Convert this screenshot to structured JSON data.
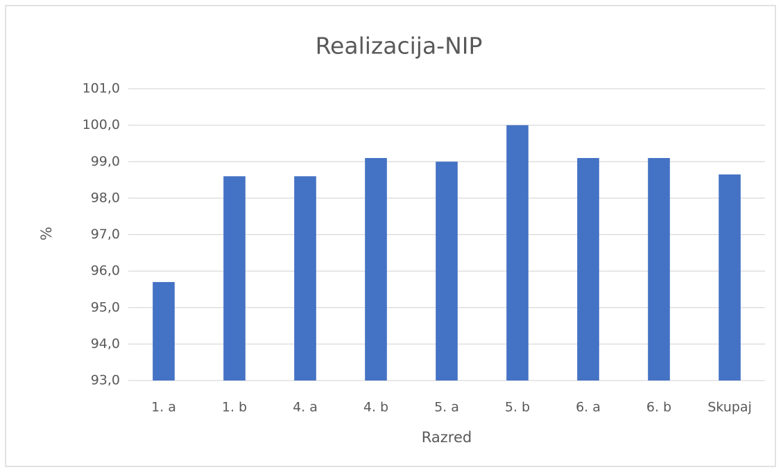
{
  "chart_data": {
    "type": "bar",
    "title": "Realizacija-NIP",
    "x_label": "Razred",
    "y_label": "%",
    "categories": [
      "1. a",
      "1. b",
      "4. a",
      "4. b",
      "5. a",
      "5. b",
      "6. a",
      "6. b",
      "Skupaj"
    ],
    "values": [
      95.7,
      98.6,
      98.6,
      99.1,
      99.0,
      100.0,
      99.1,
      99.1,
      98.65
    ],
    "color": "#4472c4",
    "ylim": [
      93,
      101
    ],
    "yticks": [
      {
        "value": 93,
        "label": "93,0"
      },
      {
        "value": 94,
        "label": "94,0"
      },
      {
        "value": 95,
        "label": "95,0"
      },
      {
        "value": 96,
        "label": "96,0"
      },
      {
        "value": 97,
        "label": "97,0"
      },
      {
        "value": 98,
        "label": "98,0"
      },
      {
        "value": 99,
        "label": "99,0"
      },
      {
        "value": 100,
        "label": "100,0"
      },
      {
        "value": 101,
        "label": "101,0"
      }
    ],
    "grid": true
  }
}
